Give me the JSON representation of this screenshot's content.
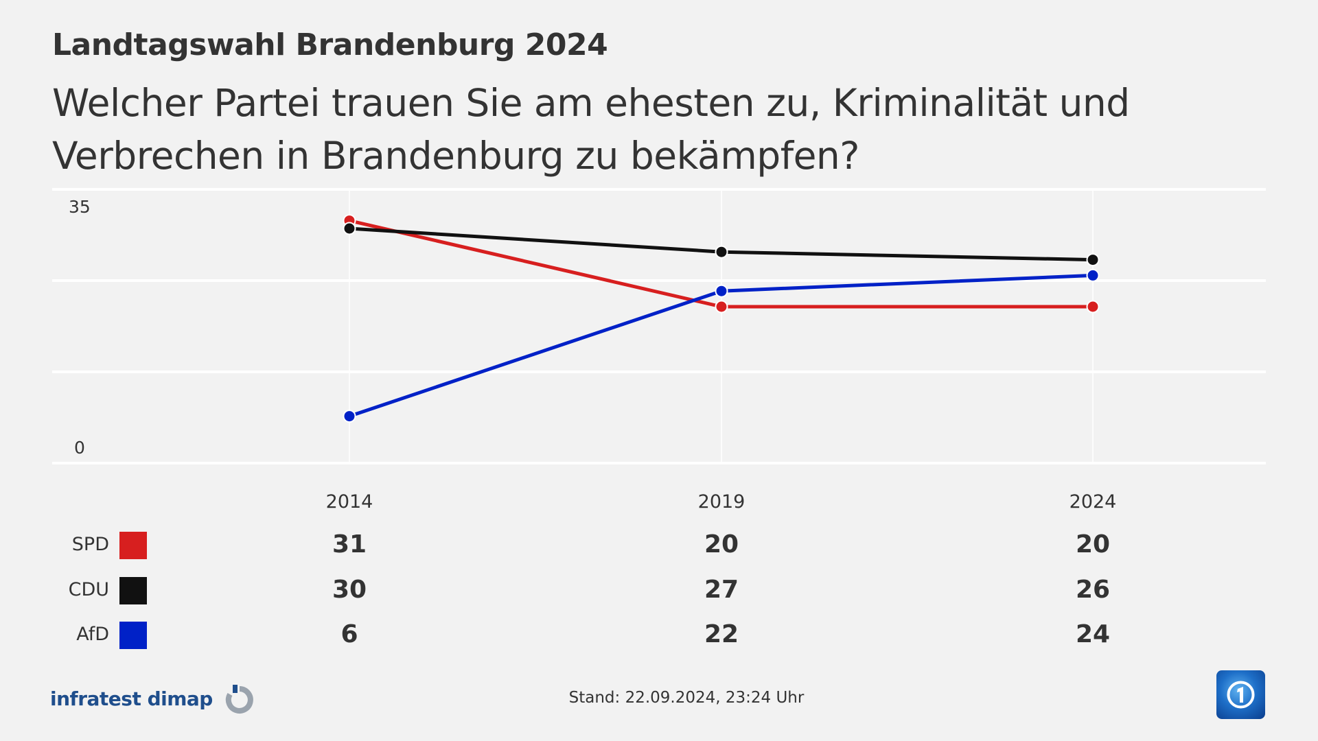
{
  "header": {
    "supertitle": "Landtagswahl Brandenburg 2024",
    "title": "Welcher Partei trauen Sie am ehesten zu, Kriminalität und Verbrechen in Brandenburg zu bekämpfen?"
  },
  "chart_data": {
    "type": "line",
    "x": [
      "2014",
      "2019",
      "2024"
    ],
    "ylim": [
      0,
      35
    ],
    "yticks_labeled": [
      "0",
      "35"
    ],
    "grid": true,
    "legend_placement": "bottom-left table",
    "series": [
      {
        "name": "SPD",
        "color": "#d71f1f",
        "values": [
          31,
          20,
          20
        ]
      },
      {
        "name": "CDU",
        "color": "#111111",
        "values": [
          30,
          27,
          26
        ]
      },
      {
        "name": "AfD",
        "color": "#0021c7",
        "values": [
          6,
          22,
          24
        ]
      }
    ]
  },
  "footer": {
    "source_logo": "infratest dimap",
    "stand": "Stand:  22.09.2024, 23:24 Uhr",
    "broadcaster_logo": "ARD Das Erste globe logo"
  }
}
